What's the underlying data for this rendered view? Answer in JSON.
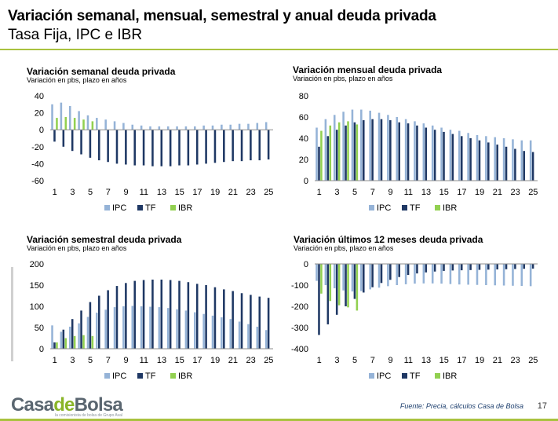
{
  "header": {
    "title": "Variación semanal, mensual, semestral y anual deuda privada",
    "subtitle": "Tasa Fija, IPC e IBR"
  },
  "footer": {
    "logo_prefix": "Casa",
    "logo_de": "de",
    "logo_suffix": "Bolsa",
    "logo_tagline": "la comisionista de bolsa de Grupo Aval",
    "source": "Fuente: Precia, cálculos Casa de Bolsa",
    "page_number": "17"
  },
  "colors": {
    "IPC": "#95b3d7",
    "TF": "#1f3864",
    "IBR": "#92d050",
    "accent": "#a9c23f"
  },
  "chart_data": [
    {
      "id": "semanal",
      "type": "bar",
      "title": "Variación semanal deuda privada",
      "subtitle": "Variación en pbs, plazo en años",
      "ylim": [
        -60,
        40
      ],
      "yticks": [
        40,
        20,
        0,
        -20,
        -40,
        -60
      ],
      "categories": [
        1,
        2,
        3,
        4,
        5,
        6,
        7,
        8,
        9,
        10,
        11,
        12,
        13,
        14,
        15,
        16,
        17,
        18,
        19,
        20,
        21,
        22,
        23,
        24,
        25
      ],
      "xticks": [
        1,
        3,
        5,
        7,
        9,
        11,
        13,
        15,
        17,
        19,
        21,
        23,
        25
      ],
      "legend_position": "bottom",
      "series": [
        {
          "name": "IPC",
          "values": [
            30,
            32,
            28,
            22,
            17,
            14,
            12,
            10,
            8,
            6,
            5,
            4,
            4,
            4,
            4,
            4,
            4,
            5,
            5,
            6,
            6,
            7,
            7,
            8,
            9
          ]
        },
        {
          "name": "TF",
          "values": [
            -14,
            -20,
            -25,
            -29,
            -33,
            -36,
            -38,
            -40,
            -41,
            -42,
            -42,
            -43,
            -43,
            -43,
            -42,
            -42,
            -41,
            -40,
            -39,
            -38,
            -37,
            -37,
            -36,
            -36,
            -35
          ]
        },
        {
          "name": "IBR",
          "values": [
            14,
            15,
            14,
            12,
            10,
            null,
            null,
            null,
            null,
            null,
            null,
            null,
            null,
            null,
            null,
            null,
            null,
            null,
            null,
            null,
            null,
            null,
            null,
            null,
            null
          ]
        }
      ]
    },
    {
      "id": "mensual",
      "type": "bar",
      "title": "Variación mensual deuda privada",
      "subtitle": "Variación en pbs, plazo en años",
      "ylim": [
        0,
        80
      ],
      "yticks": [
        80,
        60,
        40,
        20,
        0
      ],
      "categories": [
        1,
        2,
        3,
        4,
        5,
        6,
        7,
        8,
        9,
        10,
        11,
        12,
        13,
        14,
        15,
        16,
        17,
        18,
        19,
        20,
        21,
        22,
        23,
        24,
        25
      ],
      "xticks": [
        1,
        3,
        5,
        7,
        9,
        11,
        13,
        15,
        17,
        19,
        21,
        23,
        25
      ],
      "legend_position": "bottom",
      "series": [
        {
          "name": "IPC",
          "values": [
            50,
            58,
            62,
            65,
            67,
            67,
            66,
            64,
            62,
            60,
            58,
            56,
            54,
            52,
            50,
            48,
            47,
            45,
            43,
            42,
            41,
            40,
            39,
            38,
            38
          ]
        },
        {
          "name": "TF",
          "values": [
            32,
            42,
            48,
            52,
            55,
            57,
            58,
            58,
            57,
            55,
            54,
            52,
            50,
            48,
            46,
            44,
            42,
            40,
            38,
            36,
            34,
            32,
            30,
            28,
            27
          ]
        },
        {
          "name": "IBR",
          "values": [
            47,
            52,
            55,
            56,
            53,
            null,
            null,
            null,
            null,
            null,
            null,
            null,
            null,
            null,
            null,
            null,
            null,
            null,
            null,
            null,
            null,
            null,
            null,
            null,
            null
          ]
        }
      ]
    },
    {
      "id": "semestral",
      "type": "bar",
      "title": "Variación semestral deuda privada",
      "subtitle": "Variación en pbs, plazo en años",
      "ylim": [
        0,
        200
      ],
      "yticks": [
        200,
        150,
        100,
        50,
        0
      ],
      "categories": [
        1,
        2,
        3,
        4,
        5,
        6,
        7,
        8,
        9,
        10,
        11,
        12,
        13,
        14,
        15,
        16,
        17,
        18,
        19,
        20,
        21,
        22,
        23,
        24,
        25
      ],
      "xticks": [
        1,
        3,
        5,
        7,
        9,
        11,
        13,
        15,
        17,
        19,
        21,
        23,
        25
      ],
      "legend_position": "bottom",
      "series": [
        {
          "name": "IPC",
          "values": [
            55,
            40,
            52,
            60,
            75,
            85,
            92,
            98,
            100,
            101,
            100,
            99,
            98,
            96,
            93,
            90,
            86,
            82,
            78,
            74,
            70,
            64,
            58,
            52,
            44
          ]
        },
        {
          "name": "TF",
          "values": [
            15,
            45,
            70,
            90,
            110,
            125,
            138,
            148,
            155,
            160,
            162,
            163,
            163,
            162,
            160,
            157,
            153,
            150,
            145,
            140,
            136,
            131,
            127,
            123,
            120
          ]
        },
        {
          "name": "IBR",
          "values": [
            15,
            25,
            30,
            32,
            30,
            null,
            null,
            null,
            null,
            null,
            null,
            null,
            null,
            null,
            null,
            null,
            null,
            null,
            null,
            null,
            null,
            null,
            null,
            null,
            null
          ]
        }
      ]
    },
    {
      "id": "anual",
      "type": "bar",
      "title": "Variación últimos 12 meses deuda privada",
      "subtitle": "Variación en pbs, plazo en años",
      "ylim": [
        -400,
        0
      ],
      "yticks": [
        0,
        -100,
        -200,
        -300,
        -400
      ],
      "categories": [
        1,
        2,
        3,
        4,
        5,
        6,
        7,
        8,
        9,
        10,
        11,
        12,
        13,
        14,
        15,
        16,
        17,
        18,
        19,
        20,
        21,
        22,
        23,
        24,
        25
      ],
      "xticks": [
        1,
        3,
        5,
        7,
        9,
        11,
        13,
        15,
        17,
        19,
        21,
        23,
        25
      ],
      "legend_position": "bottom",
      "series": [
        {
          "name": "IPC",
          "values": [
            -80,
            -100,
            -115,
            -125,
            -130,
            -128,
            -120,
            -112,
            -105,
            -100,
            -96,
            -93,
            -92,
            -92,
            -93,
            -95,
            -97,
            -98,
            -99,
            -100,
            -101,
            -102,
            -103,
            -104,
            -105
          ]
        },
        {
          "name": "TF",
          "values": [
            -335,
            -285,
            -240,
            -200,
            -165,
            -135,
            -110,
            -90,
            -75,
            -62,
            -52,
            -45,
            -40,
            -36,
            -33,
            -31,
            -30,
            -29,
            -28,
            -27,
            -26,
            -25,
            -24,
            -23,
            -22
          ]
        },
        {
          "name": "IBR",
          "values": [
            -140,
            -175,
            -195,
            -205,
            -220,
            null,
            null,
            null,
            null,
            null,
            null,
            null,
            null,
            null,
            null,
            null,
            null,
            null,
            null,
            null,
            null,
            null,
            null,
            null,
            null
          ]
        }
      ]
    }
  ]
}
